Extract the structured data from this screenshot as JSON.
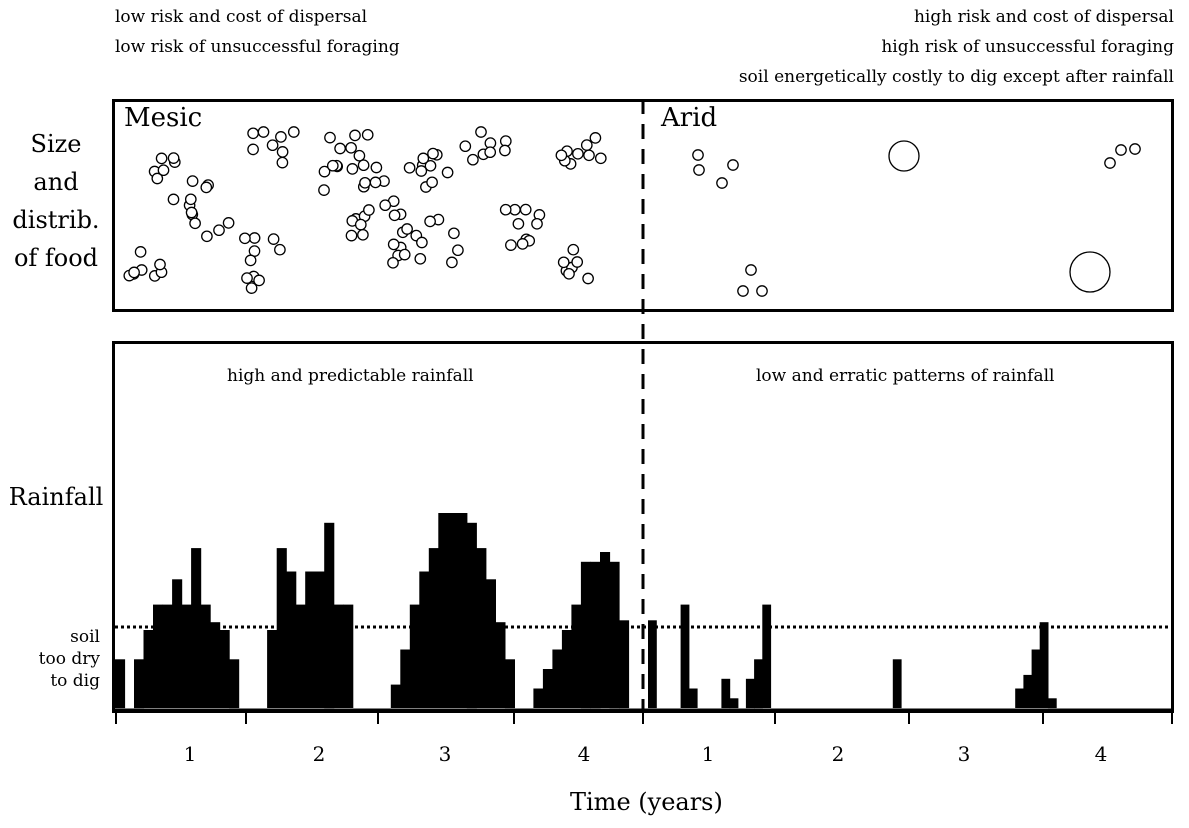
{
  "header": {
    "left_lines": [
      "low risk and cost of dispersal",
      "low risk of unsuccessful foraging"
    ],
    "right_lines": [
      "high risk and cost of dispersal",
      "high risk of unsuccessful foraging",
      "soil energetically costly to dig except after rainfall"
    ]
  },
  "food_panel": {
    "row_label": [
      "Size",
      "and",
      "distrib.",
      "of food"
    ],
    "mesic_label": "Mesic",
    "arid_label": "Arid"
  },
  "rain_panel": {
    "row_label": "Rainfall",
    "mesic_caption": "high and predictable rainfall",
    "arid_caption": "low and erratic patterns of rainfall",
    "soil_label": [
      "soil",
      "too dry",
      "to dig"
    ]
  },
  "x_axis": {
    "title": "Time (years)",
    "mesic_ticks": [
      "1",
      "2",
      "3",
      "4"
    ],
    "arid_ticks": [
      "1",
      "2",
      "3",
      "4"
    ]
  },
  "chart_data": {
    "type": "bar",
    "ylim": [
      0,
      10
    ],
    "soil_threshold": 4,
    "series": [
      {
        "values": [
          2.5,
          0,
          2.5,
          4,
          5.3,
          5.3,
          6.6,
          5.3,
          8.2,
          5.3,
          4.4,
          4,
          2.5,
          0,
          0,
          0,
          4,
          8.2,
          7,
          5.3,
          7,
          7,
          9.5,
          5.3,
          5.3,
          0,
          0,
          0,
          0,
          1.2,
          3,
          5.3,
          7,
          8.2,
          10,
          10,
          10,
          9.5,
          8.2,
          6.6,
          4.4,
          2.5,
          0,
          0,
          1,
          2,
          3,
          4,
          5.3,
          7.5,
          7.5,
          8,
          7.5,
          4.5,
          0
        ]
      },
      {
        "values": [
          4.5,
          0,
          0,
          0,
          5.3,
          1,
          0,
          0,
          0,
          1.5,
          0.5,
          0,
          1.5,
          2.5,
          5.3,
          0,
          0,
          0,
          0,
          0,
          0,
          0,
          0,
          0,
          0,
          0,
          0,
          0,
          0,
          0,
          2.5,
          0,
          0,
          0,
          0,
          0,
          0,
          0,
          0,
          0,
          0,
          0,
          0,
          0,
          0,
          1,
          1.7,
          3,
          4.4,
          0.5,
          0,
          0,
          0,
          0,
          0,
          0
        ]
      }
    ]
  }
}
